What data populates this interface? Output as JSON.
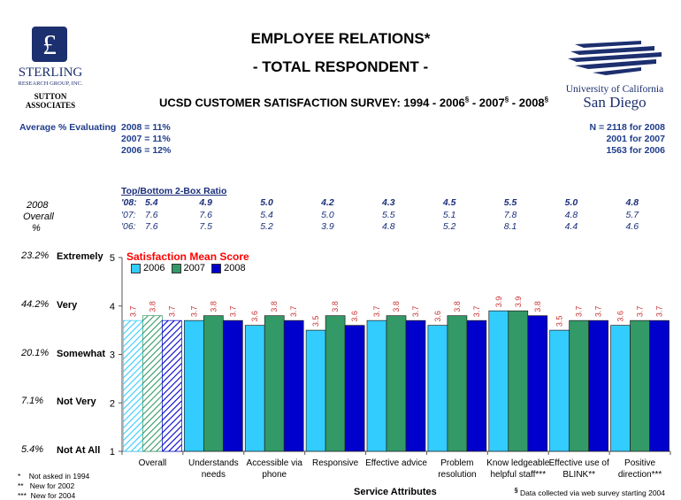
{
  "header": {
    "title_line1": "EMPLOYEE RELATIONS*",
    "title_line2": "- TOTAL RESPONDENT -",
    "subtitle": "UCSD CUSTOMER SATISFACTION SURVEY: 1994 - 2006",
    "subtitle_mid": " - 2007",
    "subtitle_end": " - 2008",
    "section_mark": "§"
  },
  "left_logo": {
    "emblem": "£",
    "name_line1": "STERLING",
    "name_line2": "RESEARCH GROUP, INC.",
    "name_line3": "SUTTON",
    "name_line4": "ASSOCIATES"
  },
  "right_logo": {
    "line1": "University of California",
    "line2": "San Diego"
  },
  "avg_evaluating": {
    "label": "Average % Evaluating",
    "rows": [
      "2008 = 11%",
      "2007 = 11%",
      "2006 = 12%"
    ]
  },
  "sample_size": {
    "rows": [
      "N = 2118 for 2008",
      "2001 for 2007",
      "1563 for 2006"
    ]
  },
  "ratio": {
    "title": "Top/Bottom 2-Box Ratio",
    "row_labels": [
      "'08:",
      "'07:",
      "'06:"
    ],
    "left_labels": [
      "2008",
      "Overall",
      "%"
    ],
    "values_2008": [
      "5.4",
      "4.9",
      "5.0",
      "4.2",
      "4.3",
      "4.5",
      "5.5",
      "5.0",
      "4.8"
    ],
    "values_2007": [
      "7.6",
      "7.6",
      "5.4",
      "5.0",
      "5.5",
      "5.1",
      "7.8",
      "4.8",
      "5.7"
    ],
    "values_2006": [
      "7.6",
      "7.5",
      "5.2",
      "3.9",
      "4.8",
      "5.2",
      "8.1",
      "4.4",
      "4.6"
    ]
  },
  "scale": [
    {
      "pct": "23.2%",
      "label": "Extremely",
      "tick": "5"
    },
    {
      "pct": "44.2%",
      "label": "Very",
      "tick": "4"
    },
    {
      "pct": "20.1%",
      "label": "Somewhat",
      "tick": "3"
    },
    {
      "pct": "7.1%",
      "label": "Not Very",
      "tick": "2"
    },
    {
      "pct": "5.4%",
      "label": "Not At All",
      "tick": "1"
    }
  ],
  "footnotes": {
    "f1": "*    Not asked in 1994",
    "f2": "**   New for 2002",
    "f3": "***  New for 2004",
    "web": "Data collected via web survey starting 2004",
    "web_mark": "§"
  },
  "chart_data": {
    "type": "bar",
    "title": "Satisfaction Mean Score",
    "xlabel": "Service Attributes",
    "ylabel": "",
    "ylim": [
      1,
      5
    ],
    "legend_position": "top-left",
    "categories": [
      "Overall",
      "Understands needs",
      "Accessible via phone",
      "Responsive",
      "Effective advice",
      "Problem resolution",
      "Knowledgeable helpful staff***",
      "Effective use of BLINK**",
      "Positive direction***"
    ],
    "category_lines": [
      [
        "Overall"
      ],
      [
        "Understands",
        "needs"
      ],
      [
        "Accessible via",
        "phone"
      ],
      [
        "Responsive"
      ],
      [
        "Effective advice"
      ],
      [
        "Problem",
        "resolution"
      ],
      [
        "Know ledgeable",
        "helpful staff***"
      ],
      [
        "Effective use of",
        "BLINK**"
      ],
      [
        "Positive",
        "direction***"
      ]
    ],
    "series": [
      {
        "name": "2006",
        "color": "#33ccff",
        "values": [
          3.7,
          3.7,
          3.6,
          3.5,
          3.7,
          3.6,
          3.9,
          3.5,
          3.6
        ]
      },
      {
        "name": "2007",
        "color": "#339966",
        "values": [
          3.8,
          3.8,
          3.8,
          3.8,
          3.8,
          3.8,
          3.9,
          3.7,
          3.7
        ]
      },
      {
        "name": "2008",
        "color": "#0000cc",
        "values": [
          3.7,
          3.7,
          3.7,
          3.6,
          3.7,
          3.7,
          3.8,
          3.7,
          3.7
        ]
      }
    ],
    "label_color": "#cc3333",
    "title_color": "#ff0000"
  }
}
